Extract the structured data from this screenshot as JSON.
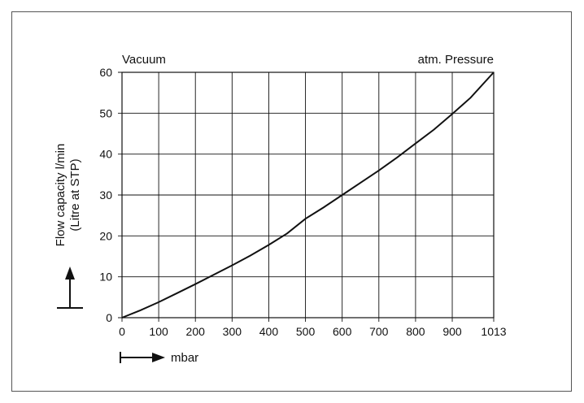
{
  "chart_data": {
    "type": "line",
    "top_left_label": "Vacuum",
    "top_right_label": "atm. Pressure",
    "ylabel_line1": "Flow capacity l/min",
    "ylabel_line2": "(Litre at STP)",
    "xlabel": "mbar",
    "x_ticks": [
      0,
      100,
      200,
      300,
      400,
      500,
      600,
      700,
      800,
      900,
      1013
    ],
    "y_ticks": [
      0,
      10,
      20,
      30,
      40,
      50,
      60
    ],
    "xlim": [
      0,
      1013
    ],
    "ylim": [
      0,
      60
    ],
    "grid": true,
    "series": [
      {
        "x": [
          0,
          50,
          100,
          150,
          200,
          250,
          300,
          350,
          400,
          450,
          500,
          550,
          600,
          650,
          700,
          750,
          800,
          850,
          900,
          950,
          1013
        ],
        "values": [
          0,
          1.8,
          3.8,
          6.0,
          8.2,
          10.5,
          12.8,
          15.2,
          17.8,
          20.6,
          24.2,
          27.0,
          30.0,
          33.0,
          36.0,
          39.2,
          42.6,
          46.0,
          49.8,
          53.8,
          60.0
        ]
      }
    ]
  }
}
